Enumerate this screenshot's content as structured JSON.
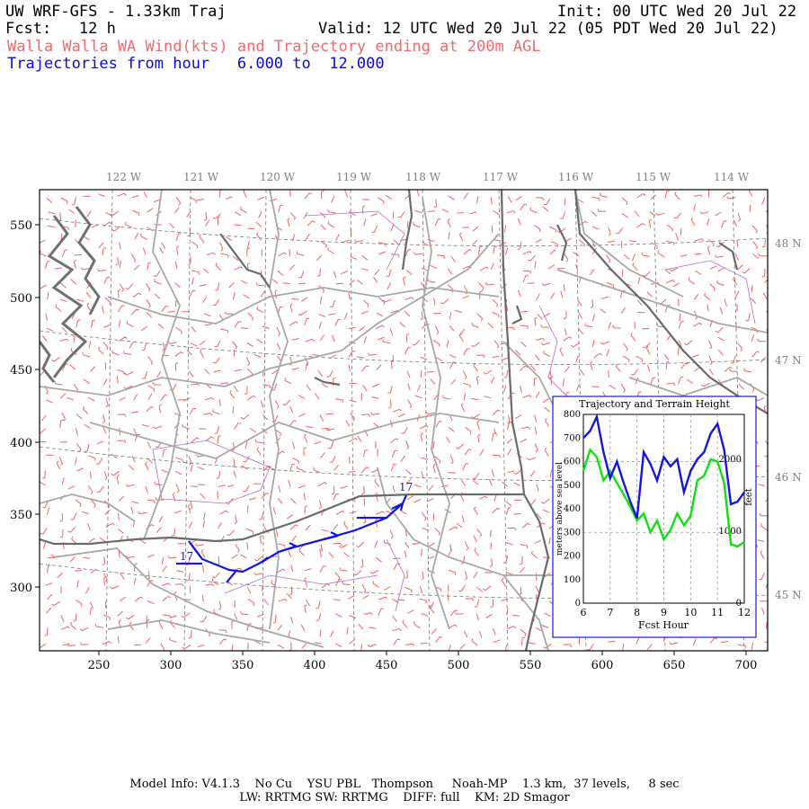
{
  "header": {
    "model_title": "UW WRF-GFS - 1.33km Traj",
    "init_time": "Init: 00 UTC Wed 20 Jul 22",
    "fcst_label": "Fcst:   12 h",
    "valid_time": "Valid: 12 UTC Wed 20 Jul 22 (05 PDT Wed 20 Jul 22)",
    "subtitle": "Walla Walla WA Wind(kts) and Trajectory ending at 200m AGL",
    "traj_range": "Trajectories from hour   6.000 to  12.000"
  },
  "map": {
    "lon_labels": [
      "122 W",
      "121 W",
      "120 W",
      "119 W",
      "118 W",
      "117 W",
      "116 W",
      "115 W",
      "114 W"
    ],
    "lat_labels": [
      "48 N",
      "47 N",
      "46 N",
      "45 N"
    ],
    "x_ticks": [
      "250",
      "300",
      "350",
      "400",
      "450",
      "500",
      "550",
      "600",
      "650",
      "700"
    ],
    "y_ticks": [
      "550",
      "500",
      "450",
      "400",
      "350",
      "300"
    ],
    "trajectory_start_label": "17",
    "trajectory_end_label": "17",
    "colors": {
      "trajectory": "#1515e0",
      "wind_barbs": "#ee6262",
      "roads": "#a0a0a0",
      "state_lines": "#666666",
      "water": "#707070",
      "counties": "#a050c0"
    }
  },
  "inset": {
    "title": "Trajectory and Terrain Height",
    "ylabel_left": "meters above sea level",
    "ylabel_right": "feet",
    "xlabel": "Fcst Hour",
    "x_ticks": [
      "6",
      "7",
      "8",
      "9",
      "10",
      "11",
      "12"
    ],
    "y_ticks_m": [
      "0",
      "100",
      "200",
      "300",
      "400",
      "500",
      "600",
      "700",
      "800"
    ],
    "y_ticks_ft": [
      "0",
      "1000",
      "2000"
    ]
  },
  "chart_data": {
    "type": "line",
    "title": "Trajectory and Terrain Height",
    "xlabel": "Fcst Hour",
    "ylabel": "meters above sea level",
    "xlim": [
      6,
      12
    ],
    "ylim": [
      0,
      800
    ],
    "grid": true,
    "x": [
      6.0,
      6.25,
      6.5,
      6.75,
      7.0,
      7.25,
      7.5,
      7.75,
      8.0,
      8.25,
      8.5,
      8.75,
      9.0,
      9.25,
      9.5,
      9.75,
      10.0,
      10.25,
      10.5,
      10.75,
      11.0,
      11.25,
      11.5,
      11.75,
      12.0
    ],
    "series": [
      {
        "name": "trajectory",
        "color": "#1515e0",
        "values": [
          700,
          730,
          790,
          640,
          530,
          600,
          510,
          430,
          360,
          640,
          590,
          520,
          620,
          580,
          610,
          470,
          560,
          610,
          640,
          720,
          760,
          650,
          420,
          430,
          470
        ]
      },
      {
        "name": "terrain",
        "color": "#10e010",
        "values": [
          560,
          650,
          620,
          520,
          560,
          510,
          460,
          410,
          350,
          380,
          300,
          350,
          270,
          310,
          380,
          330,
          370,
          520,
          540,
          610,
          600,
          510,
          250,
          240,
          260
        ]
      }
    ]
  },
  "footer": {
    "line1": "Model Info: V4.1.3    No Cu    YSU PBL   Thompson     Noah-MP    1.3 km,  37 levels,     8 sec",
    "line2": "LW: RRTMG SW: RRTMG    DIFF: full    KM: 2D Smagor"
  }
}
